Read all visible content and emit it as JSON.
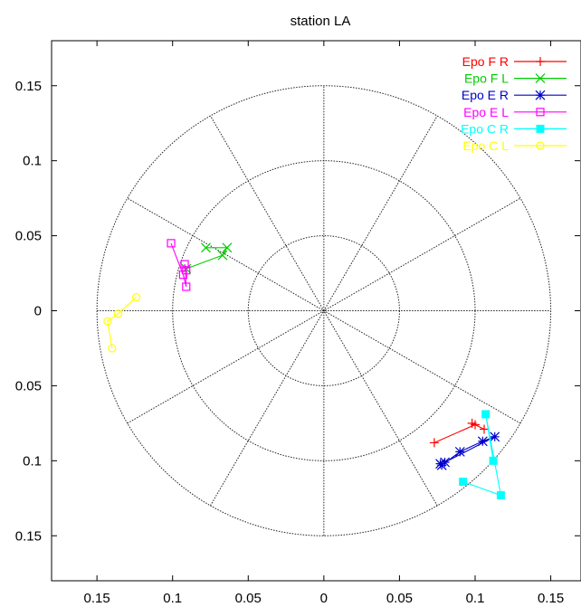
{
  "chart_data": {
    "type": "scatter",
    "title": "station LA",
    "xlim": [
      -0.18,
      0.17
    ],
    "ylim": [
      -0.18,
      0.18
    ],
    "x_ticks": [
      -0.15,
      -0.1,
      -0.05,
      0,
      0.05,
      0.1,
      0.15
    ],
    "x_tick_labels": [
      "0.15",
      "0.1",
      "0.05",
      "0",
      "0.05",
      "0.1",
      "0.15"
    ],
    "y_ticks": [
      0.15,
      0.1,
      0.05,
      0,
      -0.05,
      -0.1,
      -0.15
    ],
    "y_tick_labels": [
      "0.15",
      "0.1",
      "0.05",
      "0",
      "0.05",
      "0.1",
      "0.15"
    ],
    "polar_grid": {
      "radii": [
        0.05,
        0.1,
        0.15
      ],
      "spoke_step_deg": 30,
      "style": "dotted"
    },
    "legend_position": "top-right",
    "series": [
      {
        "name": "Epo F R",
        "color": "#ff0000",
        "marker": "plus",
        "points": [
          [
            0.073,
            -0.088
          ],
          [
            0.1,
            -0.076
          ],
          [
            0.106,
            -0.079
          ],
          [
            0.098,
            -0.075
          ]
        ]
      },
      {
        "name": "Epo F L",
        "color": "#00cc00",
        "marker": "x",
        "points": [
          [
            -0.078,
            0.042
          ],
          [
            -0.064,
            0.042
          ],
          [
            -0.067,
            0.037
          ],
          [
            -0.091,
            0.028
          ]
        ]
      },
      {
        "name": "Epo E R",
        "color": "#0000cc",
        "marker": "star",
        "points": [
          [
            0.077,
            -0.102
          ],
          [
            0.078,
            -0.103
          ],
          [
            0.09,
            -0.094
          ],
          [
            0.105,
            -0.087
          ],
          [
            0.113,
            -0.084
          ],
          [
            0.08,
            -0.101
          ]
        ]
      },
      {
        "name": "Epo E L",
        "color": "#ff00ff",
        "marker": "square-open",
        "points": [
          [
            -0.101,
            0.045
          ],
          [
            -0.093,
            0.024
          ],
          [
            -0.091,
            0.016
          ],
          [
            -0.092,
            0.031
          ],
          [
            -0.091,
            0.027
          ]
        ]
      },
      {
        "name": "Epo C R",
        "color": "#00ffff",
        "marker": "square-filled",
        "points": [
          [
            0.092,
            -0.114
          ],
          [
            0.117,
            -0.123
          ],
          [
            0.107,
            -0.069
          ],
          [
            0.112,
            -0.1
          ]
        ]
      },
      {
        "name": "Epo C L",
        "color": "#ffff00",
        "marker": "circle-open",
        "points": [
          [
            -0.14,
            -0.025
          ],
          [
            -0.143,
            -0.007
          ],
          [
            -0.136,
            -0.002
          ],
          [
            -0.124,
            0.009
          ]
        ]
      }
    ]
  }
}
